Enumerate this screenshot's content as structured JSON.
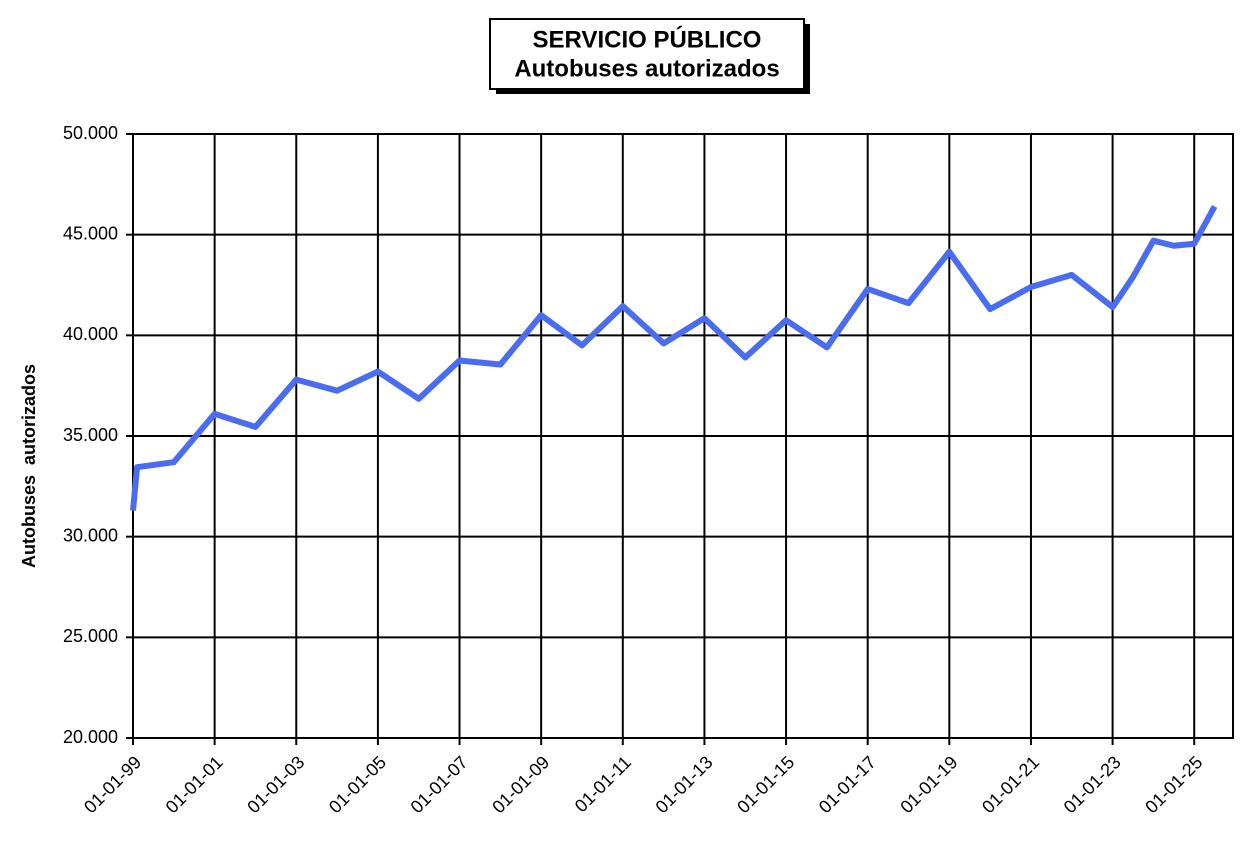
{
  "chart_data": {
    "type": "line",
    "title": "SERVICIO PÚBLICO",
    "subtitle": "Autobuses autorizados",
    "y_label": "Autobuses  autorizados",
    "x": [
      1999,
      1999.1,
      2000,
      2001,
      2002,
      2003,
      2004,
      2005,
      2006,
      2007,
      2008,
      2009,
      2010,
      2011,
      2012,
      2013,
      2014,
      2015,
      2016,
      2017,
      2018,
      2019,
      2020,
      2021,
      2022,
      2023,
      2023.5,
      2024,
      2024.5,
      2025,
      2025.5
    ],
    "series": [
      {
        "name": "Autobuses autorizados",
        "color": "#4a6cf0",
        "values": [
          31300,
          33450,
          33700,
          36100,
          35450,
          37800,
          37250,
          38200,
          36850,
          38750,
          38550,
          41000,
          39500,
          41450,
          39600,
          40850,
          38900,
          40750,
          39400,
          42300,
          41600,
          44150,
          41300,
          42400,
          43000,
          41400,
          42900,
          44700,
          44450,
          44550,
          46400
        ]
      }
    ],
    "xlim": [
      1999,
      2025.95
    ],
    "xticks": [
      {
        "value": 1999,
        "label": "01-01-99"
      },
      {
        "value": 2001,
        "label": "01-01-01"
      },
      {
        "value": 2003,
        "label": "01-01-03"
      },
      {
        "value": 2005,
        "label": "01-01-05"
      },
      {
        "value": 2007,
        "label": "01-01-07"
      },
      {
        "value": 2009,
        "label": "01-01-09"
      },
      {
        "value": 2011,
        "label": "01-01-11"
      },
      {
        "value": 2013,
        "label": "01-01-13"
      },
      {
        "value": 2015,
        "label": "01-01-15"
      },
      {
        "value": 2017,
        "label": "01-01-17"
      },
      {
        "value": 2019,
        "label": "01-01-19"
      },
      {
        "value": 2021,
        "label": "01-01-21"
      },
      {
        "value": 2023,
        "label": "01-01-23"
      },
      {
        "value": 2025,
        "label": "01-01-25"
      }
    ],
    "ylim": [
      20000,
      50000
    ],
    "yticks": [
      {
        "value": 20000,
        "label": "20.000"
      },
      {
        "value": 25000,
        "label": "25.000"
      },
      {
        "value": 30000,
        "label": "30.000"
      },
      {
        "value": 35000,
        "label": "35.000"
      },
      {
        "value": 40000,
        "label": "40.000"
      },
      {
        "value": 45000,
        "label": "45.000"
      },
      {
        "value": 50000,
        "label": "50.000"
      }
    ],
    "grid": true
  }
}
